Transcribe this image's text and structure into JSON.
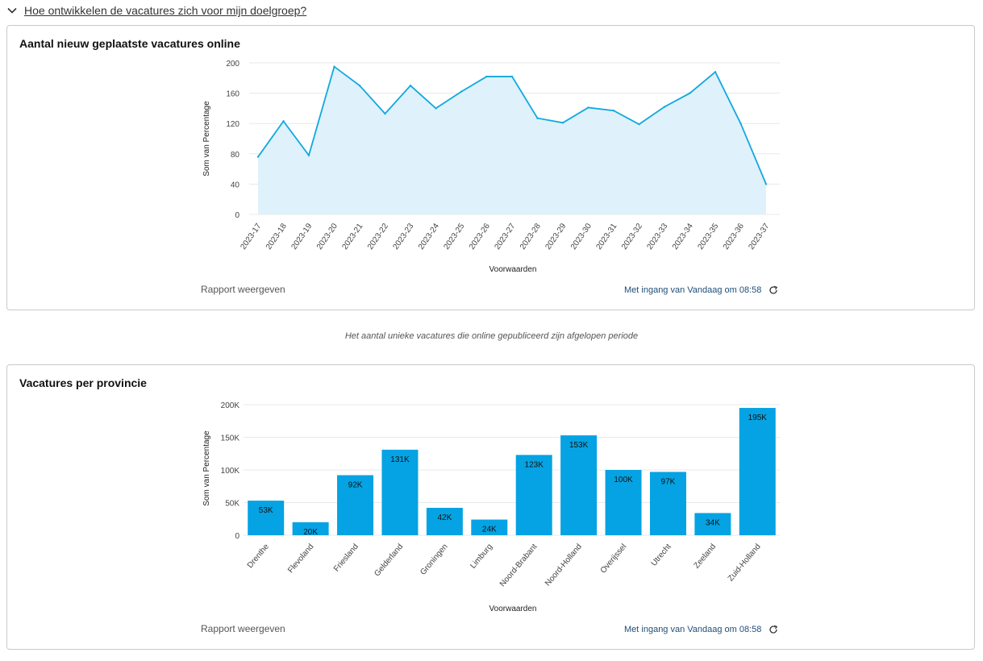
{
  "section_toggle": {
    "label": "Hoe ontwikkelen de vacatures zich voor mijn doelgroep?",
    "icon": "chevron-down-icon"
  },
  "caption": "Het aantal unieke vacatures die online gepubliceerd zijn afgelopen periode",
  "colors": {
    "area_fill": "#dff1fb",
    "line": "#11a8e0",
    "bar": "#05a3e3",
    "grid": "#e8e8e8",
    "link": "#1f4e79"
  },
  "cards": [
    {
      "title": "Aantal nieuw geplaatste vacatures online",
      "report_link": "Rapport weergeven",
      "as_of": "Met ingang van Vandaag om 08:58",
      "refresh_icon": "refresh-icon"
    },
    {
      "title": "Vacatures per provincie",
      "report_link": "Rapport weergeven",
      "as_of": "Met ingang van Vandaag om 08:58",
      "refresh_icon": "refresh-icon"
    }
  ],
  "chart_data": [
    {
      "type": "area",
      "title": "Aantal nieuw geplaatste vacatures online",
      "xlabel": "Voorwaarden",
      "ylabel": "Som van Percentage",
      "categories": [
        "2023-17",
        "2023-18",
        "2023-19",
        "2023-20",
        "2023-21",
        "2023-22",
        "2023-23",
        "2023-24",
        "2023-25",
        "2023-26",
        "2023-27",
        "2023-28",
        "2023-29",
        "2023-30",
        "2023-31",
        "2023-32",
        "2023-33",
        "2023-34",
        "2023-35",
        "2023-36",
        "2023-37"
      ],
      "values": [
        76,
        123,
        78,
        195,
        170,
        133,
        170,
        140,
        162,
        182,
        182,
        127,
        121,
        141,
        137,
        119,
        142,
        160,
        188,
        120,
        40
      ],
      "yticks": [
        "0",
        "40",
        "80",
        "120",
        "160",
        "200"
      ],
      "ylim": [
        0,
        200
      ],
      "grid": true
    },
    {
      "type": "bar",
      "title": "Vacatures per provincie",
      "xlabel": "Voorwaarden",
      "ylabel": "Som van Percentage",
      "categories": [
        "Drenthe",
        "Flevoland",
        "Friesland",
        "Gelderland",
        "Groningen",
        "Limburg",
        "Noord-Brabant",
        "Noord-Holland",
        "Overijssel",
        "Utrecht",
        "Zeeland",
        "Zuid-Holland"
      ],
      "values": [
        53000,
        20000,
        92000,
        131000,
        42000,
        24000,
        123000,
        153000,
        100000,
        97000,
        34000,
        195000
      ],
      "data_labels": [
        "53K",
        "20K",
        "92K",
        "131K",
        "42K",
        "24K",
        "123K",
        "153K",
        "100K",
        "97K",
        "34K",
        "195K"
      ],
      "yticks": [
        "0",
        "50K",
        "100K",
        "150K",
        "200K"
      ],
      "ylim": [
        0,
        200000
      ],
      "grid": true
    }
  ]
}
